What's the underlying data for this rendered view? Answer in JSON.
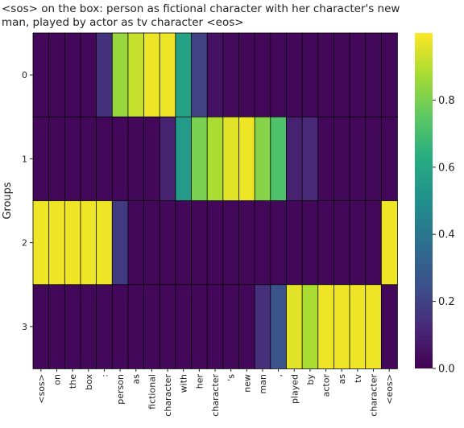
{
  "chart_data": {
    "type": "heatmap",
    "title_lines": [
      "<sos> on the box: person as fictional character with her character's new",
      "man, played by actor as tv character <eos>"
    ],
    "ylabel": "Groups",
    "xlabel": "",
    "x_tokens": [
      "<sos>",
      "on",
      "the",
      "box",
      ":",
      "person",
      "as",
      "fictional",
      "character",
      "with",
      "her",
      "character",
      "'s",
      "new",
      "man",
      ",",
      "played",
      "by",
      "actor",
      "as",
      "tv",
      "character",
      "<eos>"
    ],
    "y_groups": [
      "0",
      "1",
      "2",
      "3"
    ],
    "values": [
      [
        0.02,
        0.02,
        0.02,
        0.02,
        0.15,
        0.85,
        0.92,
        0.98,
        0.98,
        0.58,
        0.2,
        0.05,
        0.03,
        0.02,
        0.02,
        0.02,
        0.02,
        0.02,
        0.02,
        0.02,
        0.02,
        0.02,
        0.02
      ],
      [
        0.02,
        0.02,
        0.02,
        0.02,
        0.02,
        0.02,
        0.02,
        0.02,
        0.1,
        0.55,
        0.8,
        0.88,
        0.96,
        0.98,
        0.82,
        0.72,
        0.1,
        0.12,
        0.02,
        0.02,
        0.02,
        0.02,
        0.02
      ],
      [
        0.98,
        0.98,
        0.98,
        0.98,
        0.98,
        0.18,
        0.02,
        0.02,
        0.02,
        0.02,
        0.02,
        0.02,
        0.02,
        0.02,
        0.02,
        0.02,
        0.02,
        0.02,
        0.02,
        0.02,
        0.02,
        0.02,
        0.98
      ],
      [
        0.02,
        0.02,
        0.02,
        0.02,
        0.02,
        0.02,
        0.02,
        0.02,
        0.02,
        0.02,
        0.02,
        0.02,
        0.02,
        0.02,
        0.14,
        0.26,
        0.96,
        0.88,
        0.98,
        0.98,
        0.98,
        0.98,
        0.02
      ]
    ],
    "colorbar": {
      "colormap": "viridis",
      "range": [
        0.0,
        1.0
      ],
      "ticks": [
        0.0,
        0.2,
        0.4,
        0.6,
        0.8
      ],
      "tick_labels": [
        "0.0",
        "0.2",
        "0.4",
        "0.6",
        "0.8"
      ]
    }
  }
}
